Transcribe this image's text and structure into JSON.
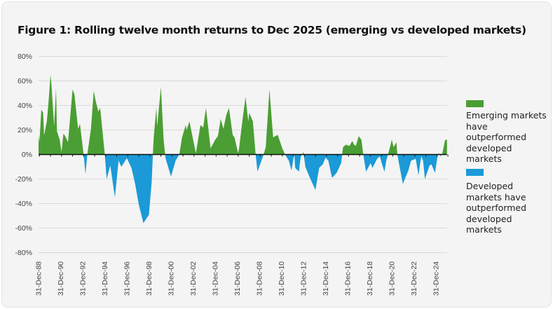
{
  "title": "Figure 1: Rolling twelve month returns to Dec 2025 (emerging vs developed markets)",
  "legend": [
    {
      "label": "Emerging markets have outperformed developed markets",
      "color": "#4b9e33"
    },
    {
      "label": "Developed markets have outperformed developed markets",
      "color": "#1b9ad7"
    }
  ],
  "chart_data": {
    "type": "area",
    "title": "Figure 1: Rolling twelve month returns to Dec 2025 (emerging vs developed markets)",
    "xlabel": "",
    "ylabel": "",
    "ylim": [
      -80,
      80
    ],
    "y_ticks": [
      "80%",
      "60%",
      "40%",
      "20%",
      "0%",
      "-20%",
      "-40%",
      "-60%",
      "-80%"
    ],
    "y_tick_values": [
      80,
      60,
      40,
      20,
      0,
      -20,
      -40,
      -60,
      -80
    ],
    "x_range": [
      "1988-12",
      "2025-12"
    ],
    "x_ticks": [
      "31-Dec-88",
      "31-Dec-90",
      "31-Dec-92",
      "31-Dec-94",
      "31-Dec-96",
      "31-Dec-98",
      "31-Dec-00",
      "31-Dec-02",
      "31-Dec-04",
      "31-Dec-06",
      "31-Dec-08",
      "31-Dec-10",
      "31-Dec-12",
      "31-Dec-14",
      "31-Dec-16",
      "31-Dec-18",
      "31-Dec-20",
      "31-Dec-22",
      "31-Dec-24"
    ],
    "x_tick_dates": [
      "1988-12",
      "1990-12",
      "1992-12",
      "1994-12",
      "1996-12",
      "1998-12",
      "2000-12",
      "2002-12",
      "2004-12",
      "2006-12",
      "2008-12",
      "2010-12",
      "2012-12",
      "2014-12",
      "2016-12",
      "2018-12",
      "2020-12",
      "2022-12",
      "2024-12"
    ],
    "grid": true,
    "legend_position": "right",
    "positive_color": "#4b9e33",
    "negative_color": "#1b9ad7",
    "unit": "%",
    "points": [
      [
        "1988-12",
        15.6
      ],
      [
        "1989-01",
        10
      ],
      [
        "1989-03",
        36.6
      ],
      [
        "1989-05",
        34
      ],
      [
        "1989-06",
        15.6
      ],
      [
        "1989-09",
        27
      ],
      [
        "1989-11",
        44
      ],
      [
        "1990-01",
        65
      ],
      [
        "1990-02",
        57
      ],
      [
        "1990-05",
        23
      ],
      [
        "1990-07",
        54
      ],
      [
        "1990-08",
        19
      ],
      [
        "1990-11",
        12
      ],
      [
        "1991-01",
        2
      ],
      [
        "1991-03",
        17
      ],
      [
        "1991-05",
        15
      ],
      [
        "1991-08",
        10
      ],
      [
        "1992-01",
        53
      ],
      [
        "1992-03",
        49
      ],
      [
        "1992-07",
        21
      ],
      [
        "1992-09",
        25
      ],
      [
        "1993-01",
        0
      ],
      [
        "1993-03",
        -16
      ],
      [
        "1993-05",
        0
      ],
      [
        "1993-09",
        21
      ],
      [
        "1993-12",
        52
      ],
      [
        "1994-02",
        44
      ],
      [
        "1994-05",
        35
      ],
      [
        "1994-07",
        38
      ],
      [
        "1994-12",
        0
      ],
      [
        "1995-02",
        -20
      ],
      [
        "1995-06",
        -9
      ],
      [
        "1995-11",
        -35
      ],
      [
        "1996-03",
        -5
      ],
      [
        "1996-06",
        -10
      ],
      [
        "1996-12",
        -3
      ],
      [
        "1997-05",
        -11
      ],
      [
        "1997-09",
        -24
      ],
      [
        "1998-01",
        -41
      ],
      [
        "1998-06",
        -56
      ],
      [
        "1998-12",
        -49
      ],
      [
        "1999-03",
        -22
      ],
      [
        "1999-05",
        12
      ],
      [
        "1999-08",
        38
      ],
      [
        "1999-09",
        23
      ],
      [
        "2000-01",
        55
      ],
      [
        "2000-04",
        12
      ],
      [
        "2000-06",
        -3
      ],
      [
        "2000-12",
        -18
      ],
      [
        "2001-05",
        -5
      ],
      [
        "2001-09",
        0
      ],
      [
        "2001-12",
        14
      ],
      [
        "2002-04",
        24
      ],
      [
        "2002-05",
        20
      ],
      [
        "2002-08",
        27
      ],
      [
        "2003-03",
        1
      ],
      [
        "2003-08",
        24
      ],
      [
        "2003-11",
        22
      ],
      [
        "2004-02",
        38
      ],
      [
        "2004-07",
        5
      ],
      [
        "2004-12",
        12
      ],
      [
        "2005-03",
        15
      ],
      [
        "2005-06",
        29
      ],
      [
        "2005-09",
        21
      ],
      [
        "2005-12",
        32
      ],
      [
        "2006-03",
        38
      ],
      [
        "2006-07",
        16
      ],
      [
        "2006-09",
        14
      ],
      [
        "2007-01",
        1
      ],
      [
        "2007-02",
        5
      ],
      [
        "2007-06",
        30
      ],
      [
        "2007-09",
        47
      ],
      [
        "2007-12",
        27
      ],
      [
        "2008-01",
        34
      ],
      [
        "2008-05",
        27
      ],
      [
        "2008-08",
        0
      ],
      [
        "2008-10",
        -14
      ],
      [
        "2009-04",
        -1.5
      ],
      [
        "2009-07",
        6
      ],
      [
        "2009-11",
        53
      ],
      [
        "2010-03",
        14
      ],
      [
        "2010-08",
        16
      ],
      [
        "2011-01",
        5
      ],
      [
        "2011-04",
        0
      ],
      [
        "2011-08",
        -5
      ],
      [
        "2011-11",
        -13
      ],
      [
        "2012-02",
        1
      ],
      [
        "2012-03",
        -11
      ],
      [
        "2012-07",
        -14
      ],
      [
        "2012-09",
        -2
      ],
      [
        "2012-12",
        2
      ],
      [
        "2013-02",
        -10
      ],
      [
        "2013-07",
        -19
      ],
      [
        "2014-01",
        -29
      ],
      [
        "2014-05",
        -11
      ],
      [
        "2014-09",
        -8
      ],
      [
        "2014-12",
        -2.5
      ],
      [
        "2015-03",
        -5
      ],
      [
        "2015-07",
        -19
      ],
      [
        "2015-12",
        -15
      ],
      [
        "2016-05",
        -7
      ],
      [
        "2016-07",
        6
      ],
      [
        "2016-10",
        8
      ],
      [
        "2017-02",
        7
      ],
      [
        "2017-05",
        11
      ],
      [
        "2017-07",
        8
      ],
      [
        "2017-09",
        7
      ],
      [
        "2017-12",
        15
      ],
      [
        "2018-03",
        12
      ],
      [
        "2018-05",
        0
      ],
      [
        "2018-08",
        -14
      ],
      [
        "2019-01",
        -7
      ],
      [
        "2019-03",
        -11
      ],
      [
        "2019-08",
        -3.5
      ],
      [
        "2019-11",
        -1.5
      ],
      [
        "2020-01",
        -7
      ],
      [
        "2020-04",
        -14
      ],
      [
        "2020-06",
        -5
      ],
      [
        "2020-09",
        3
      ],
      [
        "2020-12",
        12
      ],
      [
        "2021-02",
        6
      ],
      [
        "2021-05",
        10
      ],
      [
        "2021-06",
        0
      ],
      [
        "2021-12",
        -24
      ],
      [
        "2022-06",
        -13
      ],
      [
        "2022-09",
        -5
      ],
      [
        "2023-02",
        -3.5
      ],
      [
        "2023-05",
        -17
      ],
      [
        "2023-08",
        -1.5
      ],
      [
        "2023-10",
        -5
      ],
      [
        "2023-12",
        -20
      ],
      [
        "2024-05",
        -9
      ],
      [
        "2024-07",
        -8
      ],
      [
        "2024-11",
        -15
      ],
      [
        "2025-02",
        0
      ],
      [
        "2025-03",
        1
      ],
      [
        "2025-05",
        -1.5
      ],
      [
        "2025-07",
        1
      ],
      [
        "2025-10",
        12
      ],
      [
        "2025-12",
        12
      ]
    ]
  }
}
